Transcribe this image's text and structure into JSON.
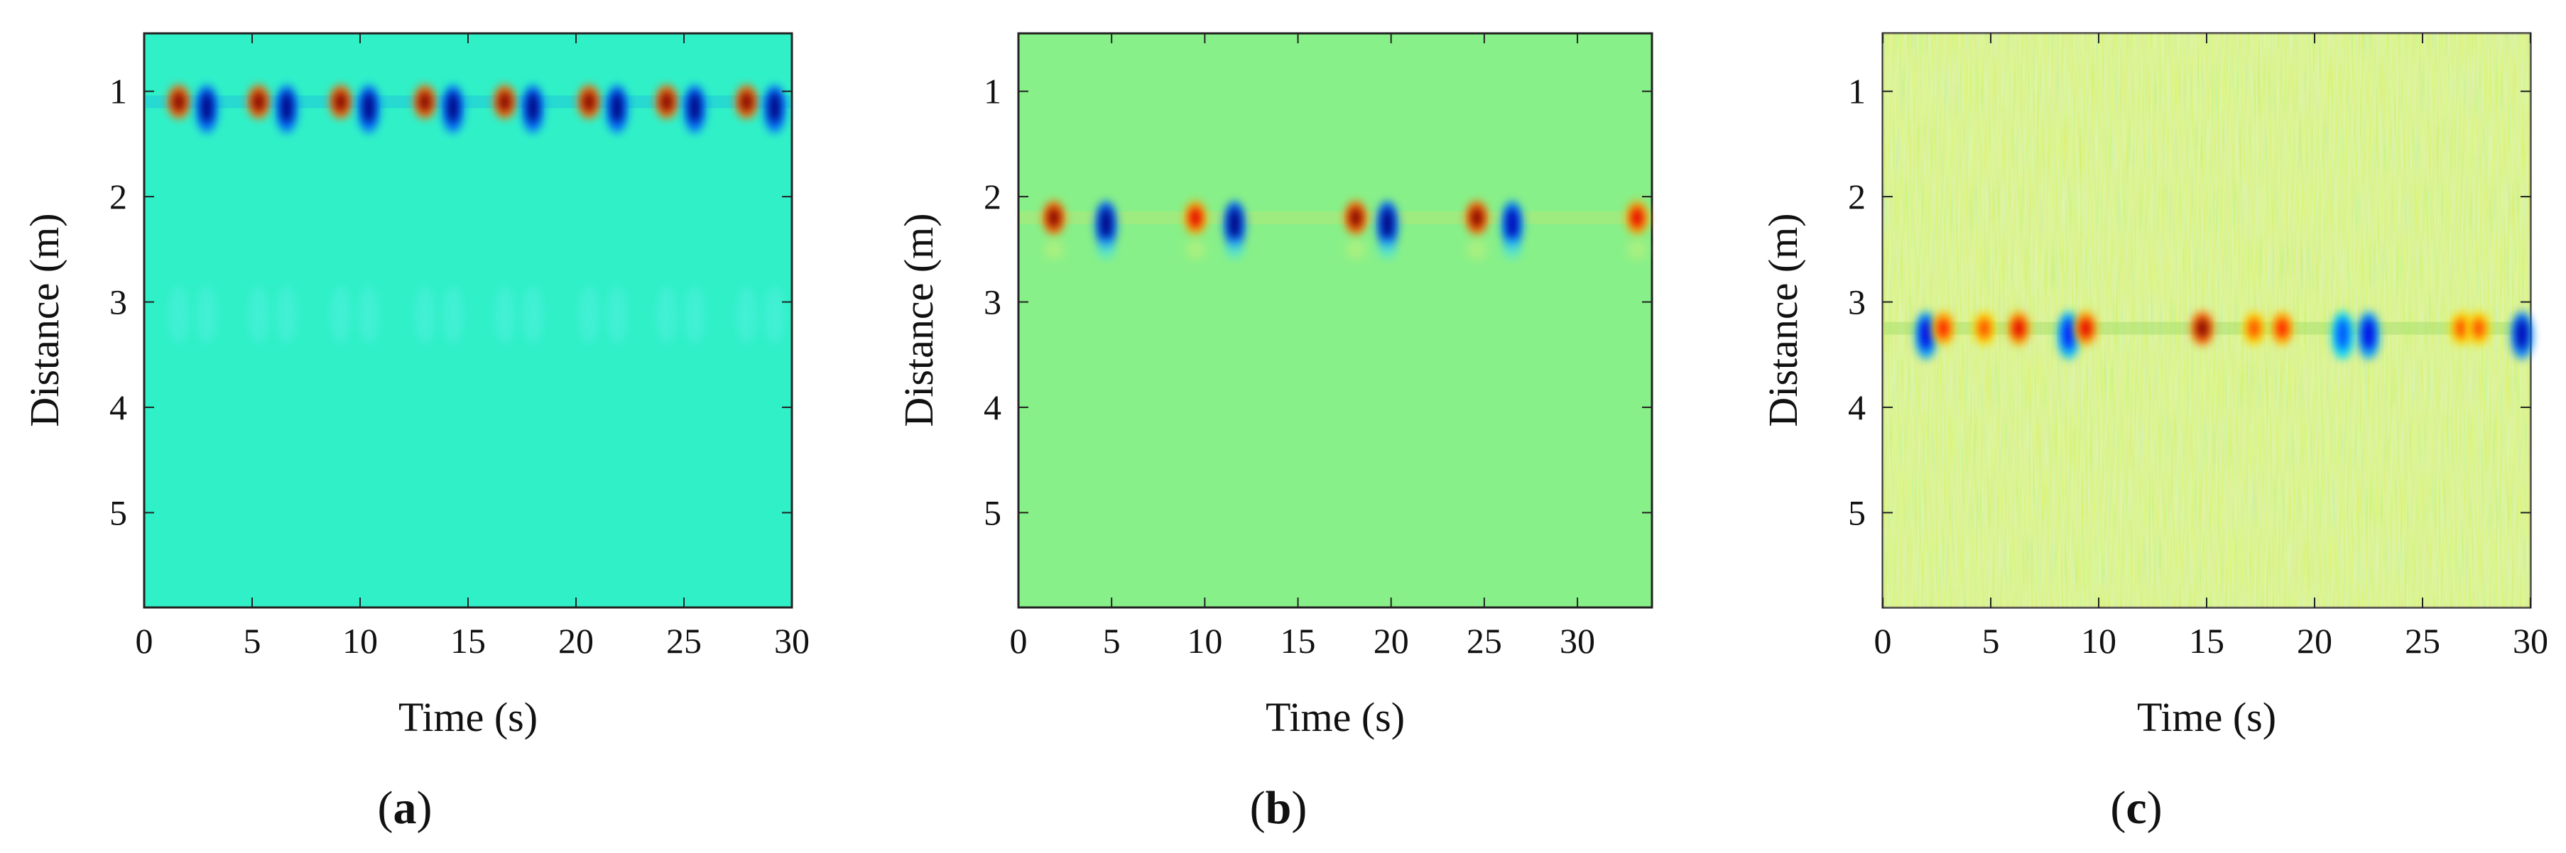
{
  "figure": {
    "panels": [
      {
        "caption_open": "(",
        "caption_letter": "a",
        "caption_close": ")"
      },
      {
        "caption_open": "(",
        "caption_letter": "b",
        "caption_close": ")"
      },
      {
        "caption_open": "(",
        "caption_letter": "c",
        "caption_close": ")"
      }
    ]
  },
  "chart_data": [
    {
      "type": "heatmap",
      "xlabel": "Time (s)",
      "ylabel": "Distance (m)",
      "xlim": [
        0,
        30
      ],
      "ylim": [
        0.45,
        5.9
      ],
      "y_reversed": true,
      "xticks": [
        0,
        5,
        10,
        15,
        20,
        25,
        30
      ],
      "yticks": [
        1,
        2,
        3,
        4,
        5
      ],
      "colormap": "jet",
      "background_color": "#30f0c8",
      "target_distance": 1.1,
      "bursts": [
        {
          "time": 1.6,
          "value": 1.0
        },
        {
          "time": 2.9,
          "value": -1.0
        },
        {
          "time": 5.3,
          "value": 1.0
        },
        {
          "time": 6.6,
          "value": -1.0
        },
        {
          "time": 9.1,
          "value": 1.0
        },
        {
          "time": 10.4,
          "value": -1.0
        },
        {
          "time": 13.0,
          "value": 1.0
        },
        {
          "time": 14.3,
          "value": -1.0
        },
        {
          "time": 16.7,
          "value": 1.0
        },
        {
          "time": 18.0,
          "value": -1.0
        },
        {
          "time": 20.6,
          "value": 1.0
        },
        {
          "time": 21.9,
          "value": -1.0
        },
        {
          "time": 24.2,
          "value": 1.0
        },
        {
          "time": 25.5,
          "value": -1.0
        },
        {
          "time": 27.9,
          "value": 1.0
        },
        {
          "time": 29.2,
          "value": -1.0
        }
      ]
    },
    {
      "type": "heatmap",
      "xlabel": "Time (s)",
      "ylabel": "Distance (m)",
      "xlim": [
        0,
        34
      ],
      "ylim": [
        0.45,
        5.9
      ],
      "y_reversed": true,
      "xticks": [
        0,
        5,
        10,
        15,
        20,
        25,
        30
      ],
      "yticks": [
        1,
        2,
        3,
        4,
        5
      ],
      "colormap": "jet",
      "background_color": "#88f088",
      "target_distance": 2.2,
      "bursts": [
        {
          "time": 1.9,
          "value": 1.0
        },
        {
          "time": 4.7,
          "value": -1.0
        },
        {
          "time": 9.5,
          "value": 0.8
        },
        {
          "time": 11.6,
          "value": -1.0
        },
        {
          "time": 18.1,
          "value": 1.0
        },
        {
          "time": 19.8,
          "value": -1.0
        },
        {
          "time": 24.6,
          "value": 1.0
        },
        {
          "time": 26.5,
          "value": -0.9
        },
        {
          "time": 33.2,
          "value": 0.8
        }
      ]
    },
    {
      "type": "heatmap",
      "xlabel": "Time (s)",
      "ylabel": "Distance (m)",
      "xlim": [
        0,
        30
      ],
      "ylim": [
        0.45,
        5.9
      ],
      "y_reversed": true,
      "xticks": [
        0,
        5,
        10,
        15,
        20,
        25,
        30
      ],
      "yticks": [
        1,
        2,
        3,
        4,
        5
      ],
      "colormap": "jet",
      "background_color": "#b4ec64",
      "target_distance": 3.25,
      "bursts": [
        {
          "time": 2.0,
          "value": -0.8
        },
        {
          "time": 2.8,
          "value": 0.7
        },
        {
          "time": 4.7,
          "value": 0.6
        },
        {
          "time": 6.3,
          "value": 0.8
        },
        {
          "time": 8.6,
          "value": -0.7
        },
        {
          "time": 9.4,
          "value": 0.8
        },
        {
          "time": 14.8,
          "value": 1.0
        },
        {
          "time": 17.2,
          "value": 0.6
        },
        {
          "time": 18.5,
          "value": 0.7
        },
        {
          "time": 21.3,
          "value": -0.6
        },
        {
          "time": 22.5,
          "value": -0.8
        },
        {
          "time": 26.8,
          "value": 0.6
        },
        {
          "time": 27.6,
          "value": 0.6
        },
        {
          "time": 29.6,
          "value": -0.9
        }
      ]
    }
  ]
}
